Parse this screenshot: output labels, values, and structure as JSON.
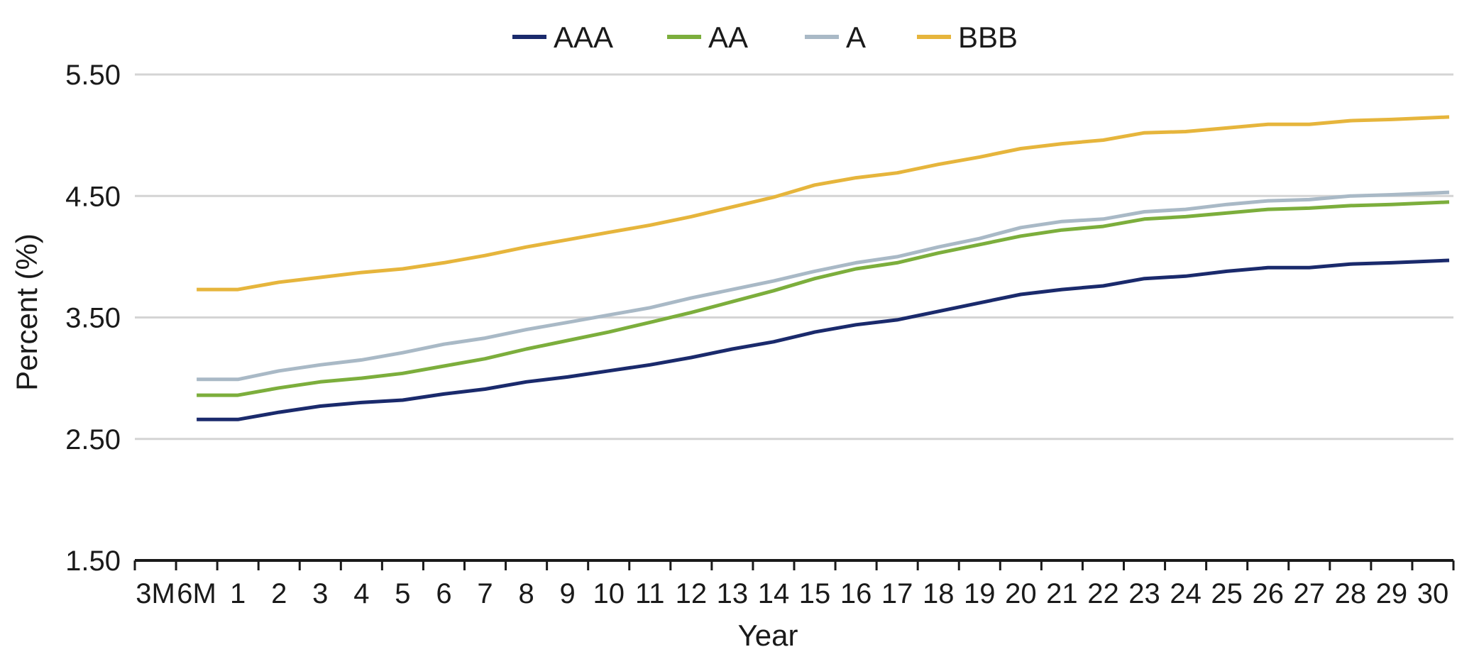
{
  "chart_data": {
    "type": "line",
    "xlabel": "Year",
    "ylabel": "Percent (%)",
    "categories": [
      "3M",
      "6M",
      "1",
      "2",
      "3",
      "4",
      "5",
      "6",
      "7",
      "8",
      "9",
      "10",
      "11",
      "12",
      "13",
      "14",
      "15",
      "16",
      "17",
      "18",
      "19",
      "20",
      "21",
      "22",
      "23",
      "24",
      "25",
      "26",
      "27",
      "28",
      "29",
      "30"
    ],
    "ylim": [
      1.5,
      5.5
    ],
    "yticks": [
      "1.50",
      "2.50",
      "3.50",
      "4.50",
      "5.50"
    ],
    "grid": true,
    "legend_position": "top-center",
    "series": [
      {
        "name": "AAA",
        "color": "#1a2a6c",
        "values": [
          null,
          2.66,
          2.66,
          2.72,
          2.77,
          2.8,
          2.82,
          2.87,
          2.91,
          2.97,
          3.01,
          3.06,
          3.11,
          3.17,
          3.24,
          3.3,
          3.38,
          3.44,
          3.48,
          3.55,
          3.62,
          3.69,
          3.73,
          3.76,
          3.82,
          3.84,
          3.88,
          3.91,
          3.91,
          3.94,
          3.95,
          3.97
        ]
      },
      {
        "name": "AA",
        "color": "#7cae3c",
        "values": [
          null,
          2.86,
          2.86,
          2.92,
          2.97,
          3.0,
          3.04,
          3.1,
          3.16,
          3.24,
          3.31,
          3.38,
          3.46,
          3.54,
          3.63,
          3.72,
          3.82,
          3.9,
          3.95,
          4.03,
          4.1,
          4.17,
          4.22,
          4.25,
          4.31,
          4.33,
          4.36,
          4.39,
          4.4,
          4.42,
          4.43,
          4.45
        ]
      },
      {
        "name": "A",
        "color": "#a9b9c6",
        "values": [
          null,
          2.99,
          2.99,
          3.06,
          3.11,
          3.15,
          3.21,
          3.28,
          3.33,
          3.4,
          3.46,
          3.52,
          3.58,
          3.66,
          3.73,
          3.8,
          3.88,
          3.95,
          4.0,
          4.08,
          4.15,
          4.24,
          4.29,
          4.31,
          4.37,
          4.39,
          4.43,
          4.46,
          4.47,
          4.5,
          4.51,
          4.53
        ]
      },
      {
        "name": "BBB",
        "color": "#e6b53c",
        "values": [
          null,
          3.73,
          3.73,
          3.79,
          3.83,
          3.87,
          3.9,
          3.95,
          4.01,
          4.08,
          4.14,
          4.2,
          4.26,
          4.33,
          4.41,
          4.49,
          4.59,
          4.65,
          4.69,
          4.76,
          4.82,
          4.89,
          4.93,
          4.96,
          5.02,
          5.03,
          5.06,
          5.09,
          5.09,
          5.12,
          5.13,
          5.15
        ]
      }
    ]
  }
}
